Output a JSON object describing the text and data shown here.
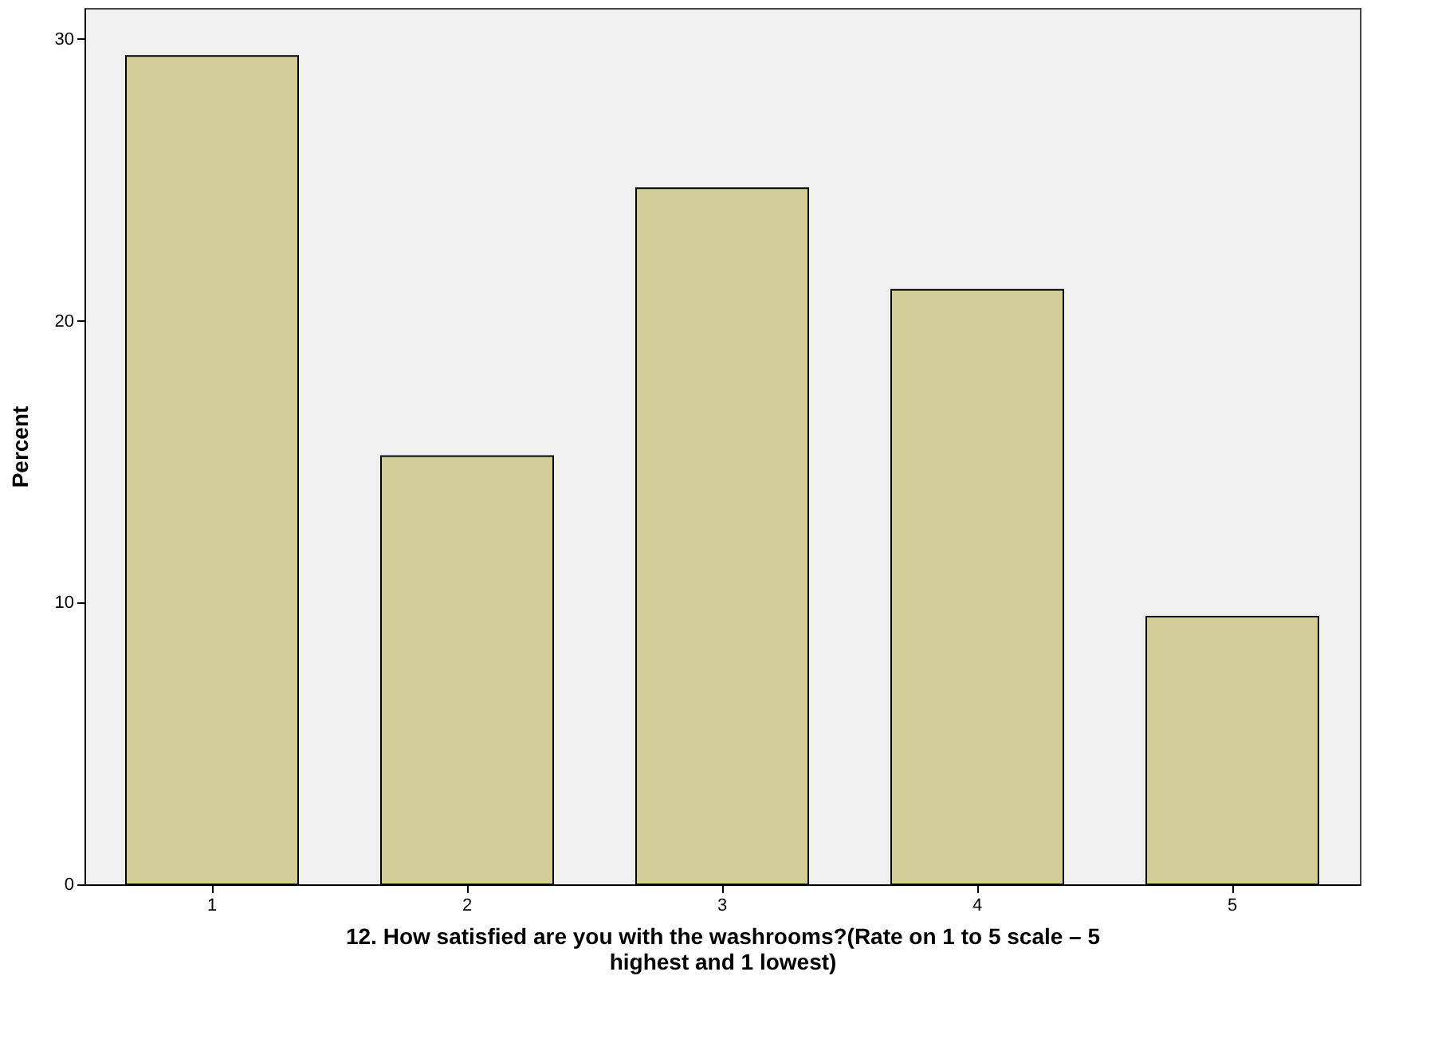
{
  "chart_data": {
    "type": "bar",
    "xlabel": "12. How satisfied are you with the washrooms?(Rate on 1 to 5 scale – 5\nhighest and 1 lowest)",
    "ylabel": "Percent",
    "categories": [
      "1",
      "2",
      "3",
      "4",
      "5"
    ],
    "values": [
      29.4,
      15.2,
      24.7,
      21.1,
      9.5
    ],
    "color": "#d3cd98",
    "ylim": [
      0,
      31.1
    ],
    "yticks": [
      0,
      10,
      20,
      30
    ],
    "grid": false
  }
}
